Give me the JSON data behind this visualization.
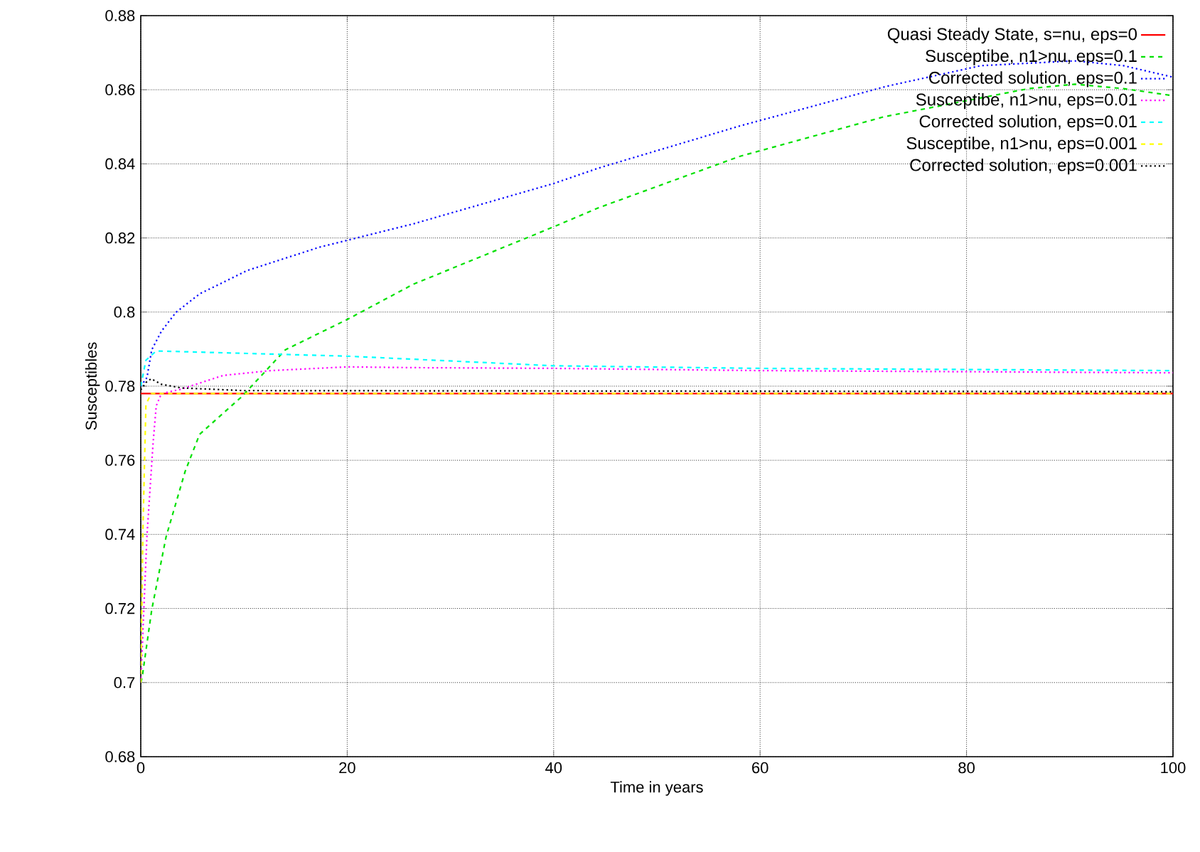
{
  "chart_data": {
    "type": "line",
    "xlabel": "Time in years",
    "ylabel": "Susceptibles",
    "xlim": [
      0,
      100
    ],
    "ylim": [
      0.68,
      0.88
    ],
    "xticks": [
      0,
      20,
      40,
      60,
      80,
      100
    ],
    "yticks": [
      0.68,
      0.7,
      0.72,
      0.74,
      0.76,
      0.78,
      0.8,
      0.82,
      0.84,
      0.86,
      0.88
    ],
    "grid": true,
    "legend": "top right",
    "series": [
      {
        "name": "Quasi Steady State, s=nu, eps=0",
        "color": "#ff0000",
        "line_style": "solid",
        "x": [
          0,
          100
        ],
        "values": [
          0.778,
          0.778
        ]
      },
      {
        "name": "Susceptibe, n1>nu, eps=0.1",
        "color": "#00e000",
        "line_style": "dashed",
        "x": [
          0,
          0.14,
          1.06,
          2.45,
          4.3,
          5.7,
          9.8,
          14,
          20,
          26.4,
          40,
          44.4,
          58,
          72,
          86,
          90.5,
          95.2,
          100
        ],
        "values": [
          0.7,
          0.7015,
          0.7196,
          0.7393,
          0.757,
          0.767,
          0.7772,
          0.7898,
          0.798,
          0.8075,
          0.823,
          0.8282,
          0.842,
          0.8527,
          0.8603,
          0.8615,
          0.8603,
          0.8584
        ]
      },
      {
        "name": "Corrected solution, eps=0.1",
        "color": "#0000ff",
        "line_style": "dotted",
        "x": [
          0,
          0.6,
          1.06,
          2,
          3.4,
          5.7,
          10.3,
          17.3,
          26.4,
          40,
          44.4,
          58,
          72.2,
          81.4,
          90.5,
          95.2,
          100
        ],
        "values": [
          0.78,
          0.7823,
          0.7898,
          0.7948,
          0.7999,
          0.8049,
          0.8112,
          0.8175,
          0.8238,
          0.8347,
          0.8389,
          0.8502,
          0.8609,
          0.8665,
          0.8678,
          0.8665,
          0.8634
        ]
      },
      {
        "name": "Susceptibe, n1>nu, eps=0.01",
        "color": "#ff00ff",
        "line_style": "dotted",
        "x": [
          0,
          0.3,
          0.6,
          1.2,
          1.5,
          2,
          3.8,
          8,
          12.6,
          20,
          26.4,
          40,
          60,
          100
        ],
        "values": [
          0.7,
          0.72,
          0.7396,
          0.7649,
          0.7747,
          0.778,
          0.7791,
          0.7829,
          0.7842,
          0.7852,
          0.785,
          0.7848,
          0.7842,
          0.7836
        ]
      },
      {
        "name": "Corrected solution, eps=0.01",
        "color": "#00ffff",
        "line_style": "dashed",
        "x": [
          0,
          0.5,
          1.5,
          20,
          40,
          60,
          100
        ],
        "values": [
          0.78,
          0.787,
          0.7895,
          0.7881,
          0.7855,
          0.7848,
          0.7842
        ]
      },
      {
        "name": "Susceptibe, n1>nu, eps=0.001",
        "color": "#ffff00",
        "line_style": "dashed",
        "x": [
          0,
          0.2,
          0.5,
          1,
          100
        ],
        "values": [
          0.7,
          0.74,
          0.775,
          0.778,
          0.778
        ]
      },
      {
        "name": "Corrected solution, eps=0.001",
        "color": "#000000",
        "line_style": "dotted",
        "x": [
          0,
          0.5,
          1,
          2,
          4,
          10,
          100
        ],
        "values": [
          0.779,
          0.781,
          0.782,
          0.7805,
          0.7795,
          0.7788,
          0.7785
        ]
      }
    ]
  }
}
